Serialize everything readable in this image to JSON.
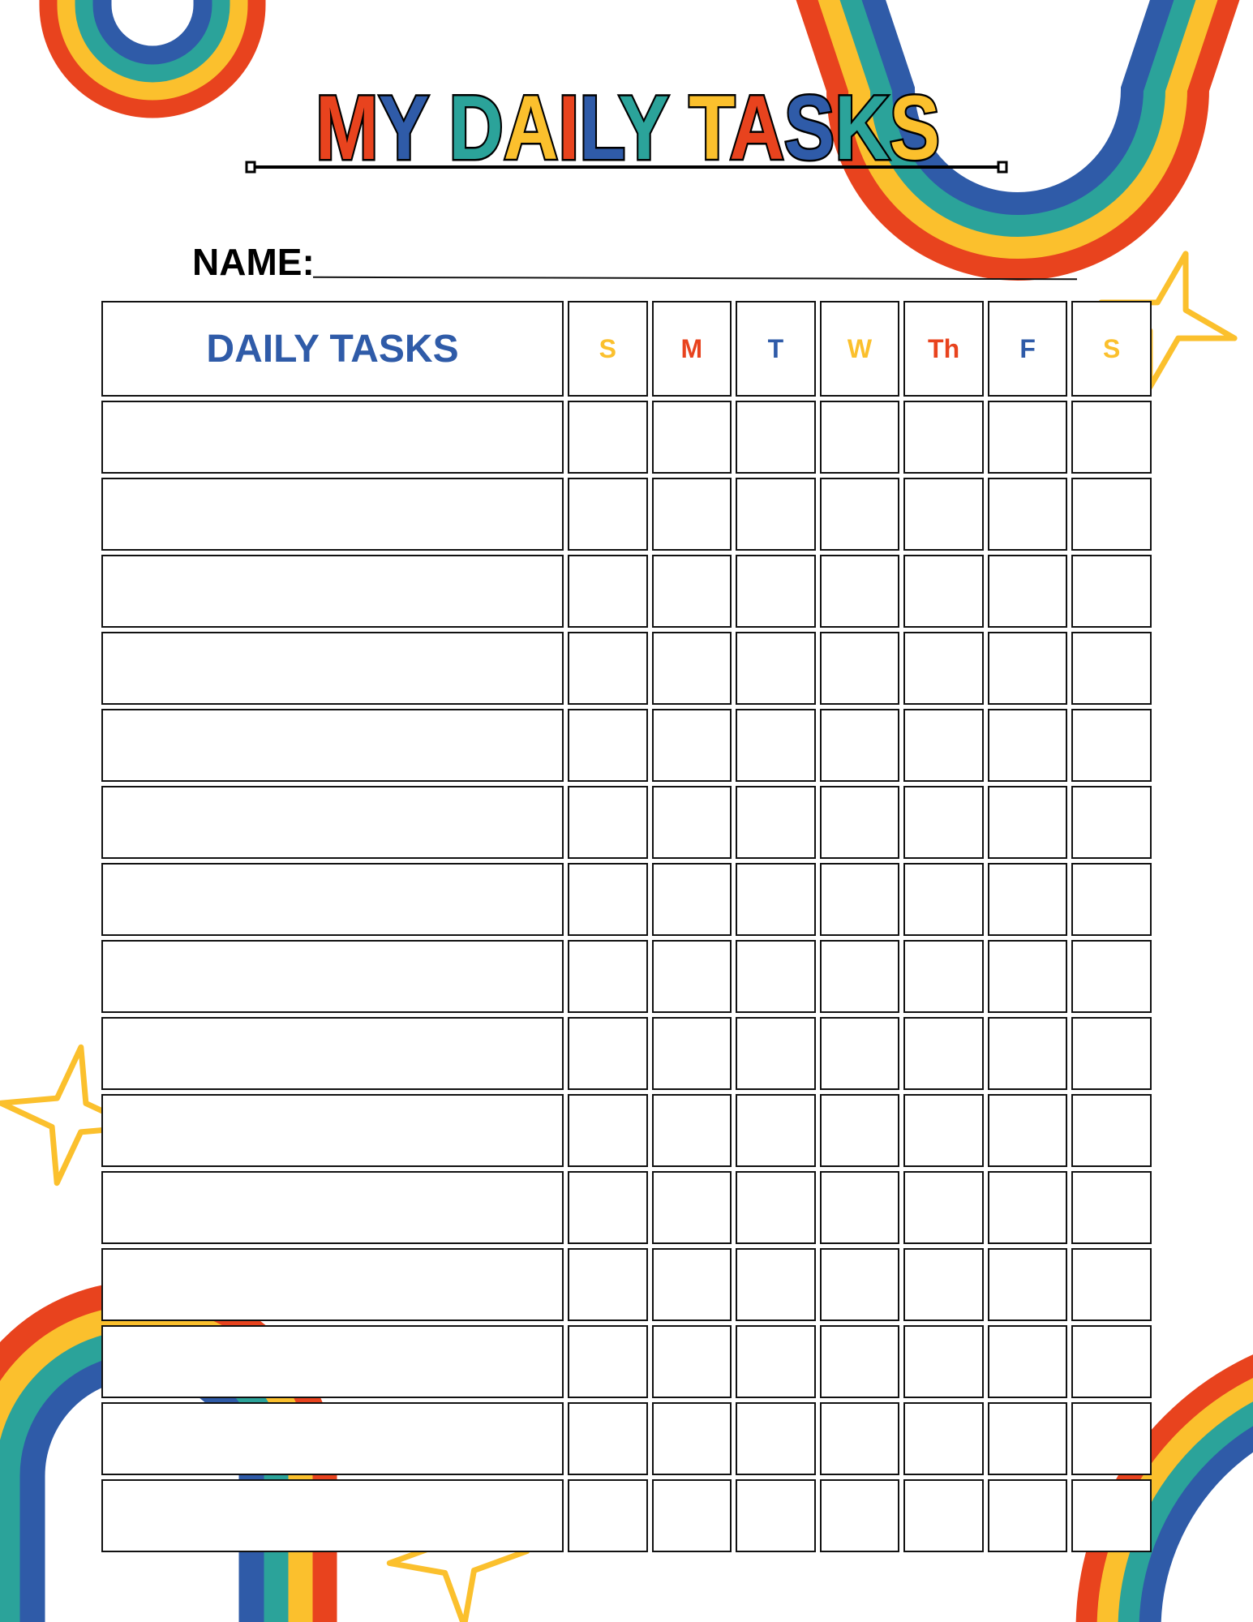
{
  "title": "MY DAILY TASKS",
  "title_letter_colors": [
    "#E8431E",
    "#2F5BA8",
    " ",
    "#2BA39A",
    "#FBC02D",
    "#E8431E",
    "#2F5BA8",
    "#2BA39A",
    " ",
    "#FBC02D",
    "#E8431E",
    "#2F5BA8",
    "#2BA39A",
    "#FBC02D"
  ],
  "name_label": "NAME:",
  "table": {
    "task_header": "DAILY TASKS",
    "days": [
      {
        "label": "S",
        "color": "#FBC02D"
      },
      {
        "label": "M",
        "color": "#E8431E"
      },
      {
        "label": "T",
        "color": "#2F5BA8"
      },
      {
        "label": "W",
        "color": "#FBC02D"
      },
      {
        "label": "Th",
        "color": "#E8431E"
      },
      {
        "label": "F",
        "color": "#2F5BA8"
      },
      {
        "label": "S",
        "color": "#FBC02D"
      }
    ],
    "tasks": [
      "",
      "",
      "",
      "",
      "",
      "",
      "",
      "",
      "",
      "",
      "",
      "",
      "",
      "",
      ""
    ]
  },
  "colors": {
    "red": "#E8431E",
    "yellow": "#FBC02D",
    "teal": "#2BA39A",
    "blue": "#2F5BA8",
    "header_blue": "#2F5BA8"
  },
  "decorations": [
    "rainbow-icon",
    "rainbow-icon",
    "rainbow-icon",
    "rainbow-icon",
    "star-icon",
    "star-icon",
    "star-icon"
  ]
}
